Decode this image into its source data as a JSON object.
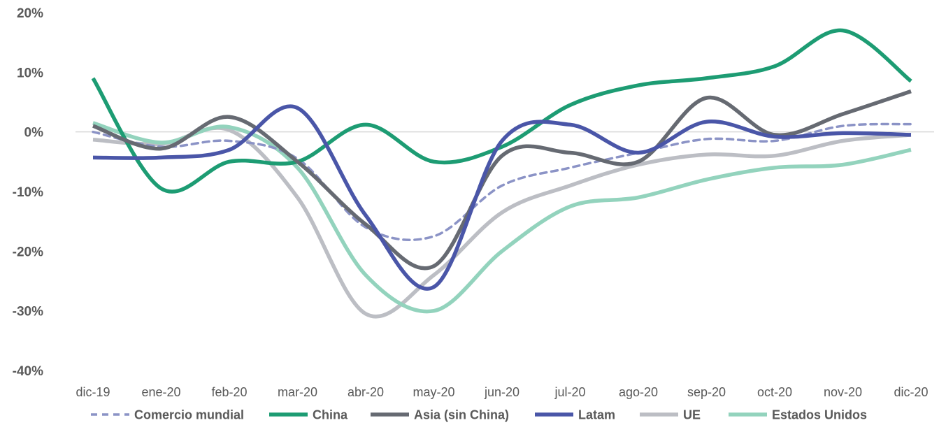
{
  "chart_data": {
    "type": "line",
    "categories": [
      "dic-19",
      "ene-20",
      "feb-20",
      "mar-20",
      "abr-20",
      "may-20",
      "jun-20",
      "jul-20",
      "ago-20",
      "sep-20",
      "oct-20",
      "nov-20",
      "dic-20"
    ],
    "y_ticks": [
      "20%",
      "10%",
      "0%",
      "-10%",
      "-20%",
      "-30%",
      "-40%"
    ],
    "ylim": [
      -40,
      20
    ],
    "y_unit": "%",
    "grid": false,
    "zero_line": true,
    "legend_position": "bottom",
    "series": [
      {
        "name": "Comercio mundial",
        "color": "#8b93c6",
        "dashed": true,
        "values": [
          0.0,
          -2.5,
          -1.5,
          -4.5,
          -16.0,
          -17.5,
          -9.0,
          -6.0,
          -3.5,
          -1.2,
          -1.5,
          1.0,
          1.3
        ]
      },
      {
        "name": "China",
        "color": "#1d9c73",
        "dashed": false,
        "values": [
          9.0,
          -9.5,
          -5.0,
          -5.0,
          1.2,
          -5.0,
          -2.5,
          4.5,
          7.8,
          9.0,
          11.0,
          17.0,
          8.5
        ]
      },
      {
        "name": "Asia (sin China)",
        "color": "#666a72",
        "dashed": false,
        "values": [
          1.0,
          -2.8,
          2.5,
          -5.0,
          -15.5,
          -22.5,
          -4.0,
          -3.5,
          -5.0,
          5.7,
          -0.5,
          3.0,
          6.8
        ]
      },
      {
        "name": "Latam",
        "color": "#4a56a8",
        "dashed": false,
        "values": [
          -4.3,
          -4.3,
          -3.0,
          4.0,
          -14.0,
          -26.0,
          -1.5,
          1.2,
          -3.5,
          1.7,
          -0.8,
          -0.2,
          -0.5
        ]
      },
      {
        "name": "UE",
        "color": "#bcbec4",
        "dashed": false,
        "values": [
          -1.3,
          -2.0,
          0.3,
          -11.0,
          -30.5,
          -24.0,
          -13.5,
          -9.0,
          -5.5,
          -3.8,
          -4.0,
          -1.5,
          -0.5
        ]
      },
      {
        "name": "Estados Unidos",
        "color": "#93d3bd",
        "dashed": false,
        "values": [
          1.5,
          -1.8,
          0.8,
          -6.0,
          -24.0,
          -30.0,
          -20.0,
          -12.5,
          -11.0,
          -8.0,
          -6.0,
          -5.5,
          -3.0
        ]
      }
    ]
  }
}
